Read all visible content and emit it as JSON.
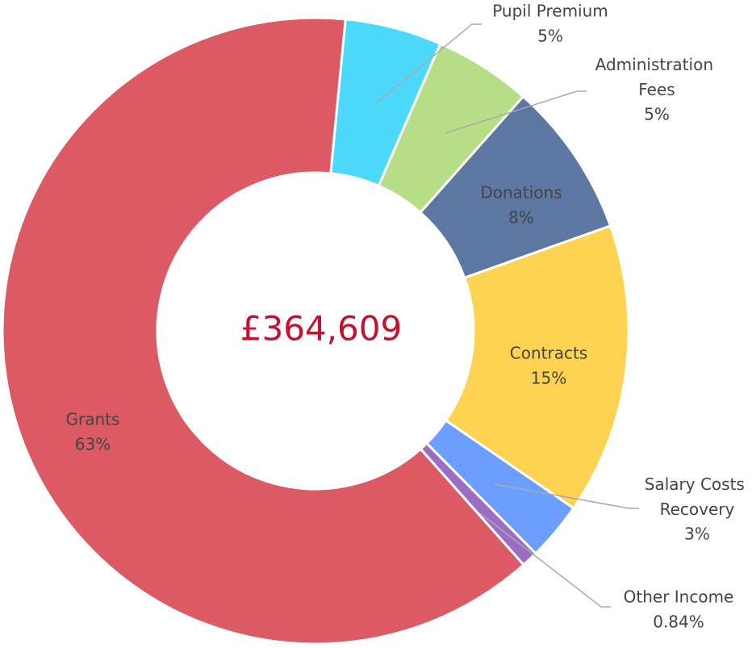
{
  "chart_data": {
    "type": "donut",
    "center_label": "£364,609",
    "categories": [
      "Pupil Premium",
      "Administration Fees",
      "Donations",
      "Contracts",
      "Salary Costs Recovery",
      "Other Income",
      "Grants"
    ],
    "values": [
      5,
      5,
      8,
      15,
      3,
      0.84,
      63
    ],
    "value_labels": [
      "5%",
      "5%",
      "8%",
      "15%",
      "3%",
      "0.84%",
      "63%"
    ],
    "colors": [
      "#4dd9fc",
      "#b5de87",
      "#5d77a3",
      "#fed352",
      "#6b9eff",
      "#9b6ec4",
      "#db5a64"
    ]
  }
}
